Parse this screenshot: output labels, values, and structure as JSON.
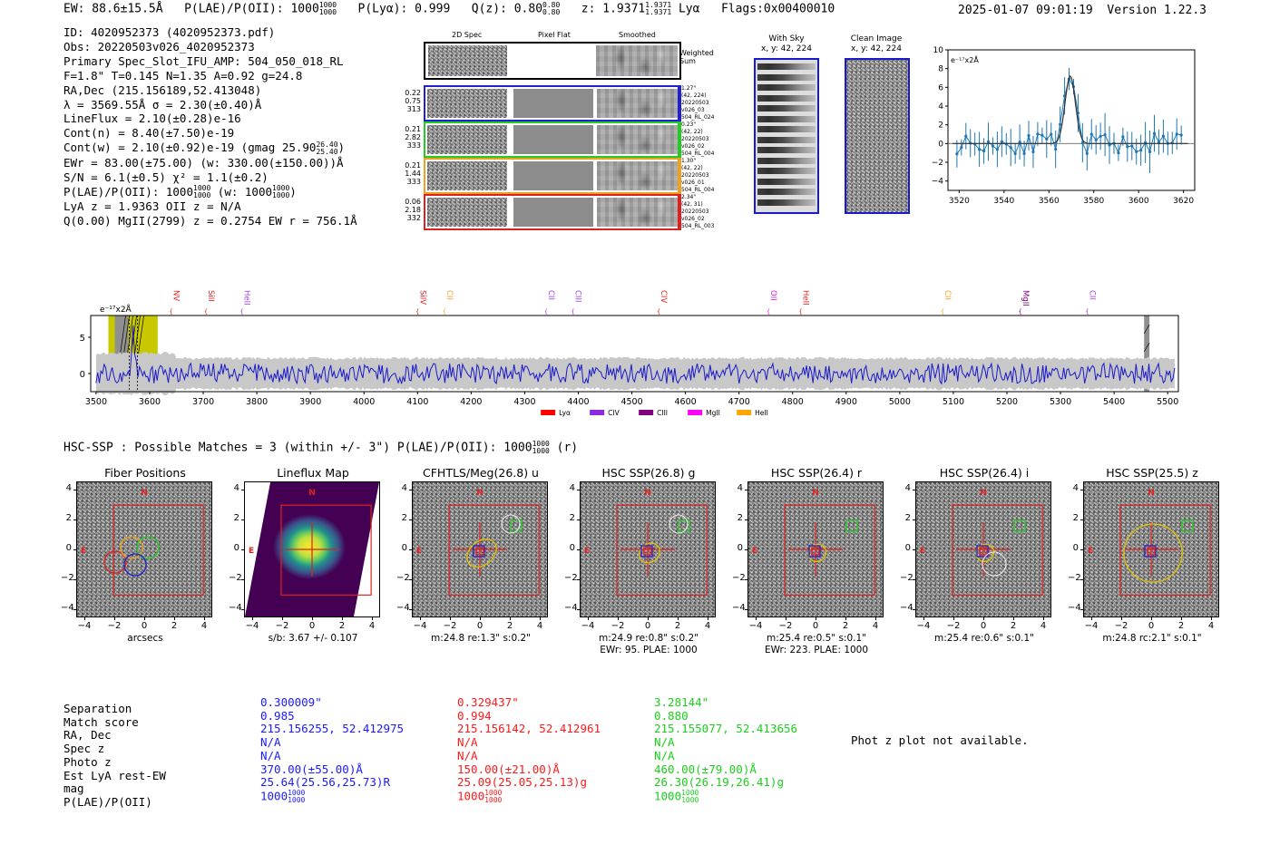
{
  "header": {
    "ew": "EW: 88.6±15.5Å",
    "plae_label": "P(LAE)/P(OII): 1000",
    "plae_hi": "1000",
    "plae_lo": "1000",
    "plya": "P(Lyα): 0.999",
    "qz_label": "Q(z): 0.80",
    "qz_hi": "0.80",
    "qz_lo": "0.80",
    "z_label": "z: 1.9371",
    "z_hi": "1.9371",
    "z_lo": "1.9371",
    "line": "Lyα",
    "flags": "Flags:0x00400010",
    "datetime": "2025-01-07 09:01:19",
    "version": "Version 1.22.3"
  },
  "info": {
    "l1": "ID: 4020952373 (4020952373.pdf)",
    "l2": "Obs: 20220503v026_4020952373",
    "l3": "Primary Spec_Slot_IFU_AMP: 504_050_018_RL",
    "l4": "F=1.8\"  T=0.145  N=1.35  A=0.92  g=24.8",
    "l5": "RA,Dec (215.156189,52.413048)",
    "l6": "λ = 3569.55Å   σ = 2.30(±0.40)Å",
    "l7": "LineFlux = 2.10(±0.28)e-16",
    "l8": "Cont(n) = 8.40(±7.50)e-19",
    "l9": "Cont(w) = 2.10(±0.92)e-19 (gmag 25.90",
    "l9_hi": "26.40",
    "l9_lo": "25.40",
    "l9_end": ")",
    "l10": "EWr = 83.00(±75.00) (w: 330.00(±150.00))Å",
    "l11": "S/N = 6.1(±0.5)   χ² = 1.1(±0.2)",
    "l12": "P(LAE)/P(OII): 1000",
    "l12_hi": "1000",
    "l12_lo": "1000",
    "l12_mid": "(w: 1000",
    "l12_hi2": "1000",
    "l12_lo2": "1000",
    "l12_end": ")",
    "l13": "LyA z = 1.9363  OII z = N/A",
    "l14": "Q(0.00) MgII(2799) z = 0.2754  EW r = 756.1Å"
  },
  "spec2d": {
    "col_titles": [
      "2D Spec",
      "Pixel Flat",
      "Smoothed"
    ],
    "weighted_label": [
      "Weighted",
      "Sum"
    ],
    "rows": [
      {
        "stats": [
          "0.22",
          "0.75",
          "313"
        ],
        "color": "#2020d0",
        "right": [
          "1.27\"",
          "(42, 224)",
          "20220503",
          "v026_03",
          "504_RL_024"
        ]
      },
      {
        "stats": [
          "0.21",
          "2.82",
          "333"
        ],
        "color": "#22cc22",
        "right": [
          "0.23\"",
          "(42, 22)",
          "20220503",
          "v026_02",
          "504_RL_004"
        ]
      },
      {
        "stats": [
          "0.21",
          "1.44",
          "333"
        ],
        "color": "#f0a020",
        "right": [
          "1.30\"",
          "(42, 22)",
          "20220503",
          "v026_01",
          "504_RL_004"
        ]
      },
      {
        "stats": [
          "0.06",
          "2.18",
          "332"
        ],
        "color": "#e02020",
        "right": [
          "2.34\"",
          "(42, 31)",
          "20220503",
          "v026_02",
          "504_RL_003"
        ]
      }
    ]
  },
  "cutouts": {
    "with_sky": [
      "With Sky",
      "x, y: 42, 224"
    ],
    "clean": [
      "Clean Image",
      "x, y: 42, 224"
    ]
  },
  "zoom_plot": {
    "units": "e⁻¹⁷x2Å",
    "x_ticks": [
      "3520",
      "3540",
      "3560",
      "3580",
      "3600",
      "3620"
    ],
    "y_ticks": [
      "10",
      "8",
      "6",
      "4",
      "2",
      "0",
      "−2",
      "−4"
    ],
    "xlim": [
      3515,
      3625
    ],
    "ylim": [
      -5,
      10
    ]
  },
  "full_spec": {
    "units": "e⁻¹⁷x2Å",
    "y_ticks": [
      "5",
      "0"
    ],
    "x_ticks": [
      "3500",
      "3600",
      "3700",
      "3800",
      "3900",
      "4000",
      "4100",
      "4200",
      "4300",
      "4400",
      "4500",
      "4600",
      "4700",
      "4800",
      "4900",
      "5000",
      "5100",
      "5200",
      "5300",
      "5400",
      "5500"
    ],
    "xlim": [
      3490,
      5520
    ],
    "lines": [
      {
        "name": "NV",
        "wl": 3640,
        "color": "#e02020"
      },
      {
        "name": "SiII",
        "wl": 3705,
        "color": "#e02020"
      },
      {
        "name": "HeII",
        "wl": 3772,
        "color": "#a040e0"
      },
      {
        "name": "SiIV",
        "wl": 4100,
        "color": "#e02020"
      },
      {
        "name": "CII",
        "wl": 4150,
        "color": "#f0a020"
      },
      {
        "name": "CII",
        "wl": 4340,
        "color": "#a040e0"
      },
      {
        "name": "CIII",
        "wl": 4390,
        "color": "#a040e0"
      },
      {
        "name": "CIV",
        "wl": 4550,
        "color": "#e02020"
      },
      {
        "name": "OII",
        "wl": 4755,
        "color": "#e020e0"
      },
      {
        "name": "HeII",
        "wl": 4815,
        "color": "#e02020"
      },
      {
        "name": "CII",
        "wl": 5080,
        "color": "#f0a020"
      },
      {
        "name": "MgII",
        "wl": 5225,
        "color": "#800080"
      },
      {
        "name": "CII",
        "wl": 5350,
        "color": "#a040e0"
      }
    ],
    "legend": [
      {
        "name": "Lyα",
        "color": "#ff0000"
      },
      {
        "name": "CIV",
        "color": "#8a2be2"
      },
      {
        "name": "CIII",
        "color": "#800080"
      },
      {
        "name": "MgII",
        "color": "#ff00ff"
      },
      {
        "name": "HeII",
        "color": "#ffa500"
      }
    ]
  },
  "hsc_header": {
    "text": "HSC-SSP : Possible Matches = 3 (within +/- 3\")  P(LAE)/P(OII): 1000",
    "hi": "1000",
    "lo": "1000",
    "end": "(r)"
  },
  "panels": [
    {
      "title": "Fiber Positions",
      "under": [
        "arcsecs",
        ""
      ]
    },
    {
      "title": "Lineflux Map",
      "under": [
        "s/b: 3.67 +/- 0.107",
        ""
      ]
    },
    {
      "title": "CFHTLS/Meg(26.8) u",
      "under": [
        "m:24.8  re:1.3\"  s:0.2\"",
        ""
      ]
    },
    {
      "title": "HSC SSP(26.8) g",
      "under": [
        "m:24.9  re:0.8\"  s:0.2\"",
        "EWr: 95. PLAE: 1000"
      ]
    },
    {
      "title": "HSC SSP(26.4) r",
      "under": [
        "m:25.4  re:0.5\"  s:0.1\"",
        "EWr: 223. PLAE: 1000"
      ]
    },
    {
      "title": "HSC SSP(26.4) i",
      "under": [
        "m:25.4  re:0.6\"  s:0.1\"",
        ""
      ]
    },
    {
      "title": "HSC SSP(25.5) z",
      "under": [
        "m:24.8  rc:2.1\"  s:0.1\"",
        ""
      ]
    }
  ],
  "panel_ticks": {
    "y": [
      "4",
      "2",
      "0",
      "−2",
      "−4"
    ],
    "x": [
      "−4",
      "−2",
      "0",
      "2",
      "4"
    ],
    "north": "N",
    "east": "E"
  },
  "match_table": {
    "labels": [
      "Separation",
      "Match score",
      "RA, Dec",
      "Spec z",
      "Photo z",
      "Est LyA rest-EW",
      "mag",
      "P(LAE)/P(OII)"
    ],
    "columns": [
      {
        "color": "#1a1aff",
        "values": [
          "0.300009\"",
          "0.985",
          "215.156255, 52.412975",
          "N/A",
          "N/A",
          "370.00(±55.00)Å",
          "25.64(25.56,25.73)R",
          "1000"
        ],
        "hi": "1000",
        "lo": "1000"
      },
      {
        "color": "#ff1a1a",
        "values": [
          "0.329437\"",
          "0.994",
          "215.156142, 52.412961",
          "N/A",
          "N/A",
          "150.00(±21.00)Å",
          "25.09(25.05,25.13)g",
          "1000"
        ],
        "hi": "1000",
        "lo": "1000"
      },
      {
        "color": "#1ad01a",
        "values": [
          "3.28144\"",
          "0.880",
          "215.155077, 52.413656",
          "N/A",
          "N/A",
          "460.00(±79.00)Å",
          "26.30(26.19,26.41)g",
          "1000"
        ],
        "hi": "1000",
        "lo": "1000"
      }
    ],
    "photz_note": "Phot z plot not available."
  }
}
